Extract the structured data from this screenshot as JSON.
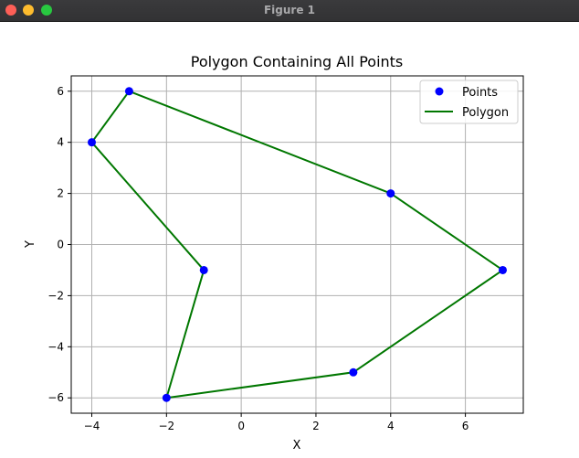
{
  "window": {
    "title": "Figure 1"
  },
  "chart_data": {
    "type": "scatter",
    "title": "Polygon Containing All Points",
    "xlabel": "X",
    "ylabel": "Y",
    "xlim": [
      -4.55,
      7.55
    ],
    "ylim": [
      -6.6,
      6.6
    ],
    "grid": true,
    "xticks": [
      -4,
      -2,
      0,
      2,
      4,
      6
    ],
    "xtick_labels": [
      "−4",
      "−2",
      "0",
      "2",
      "4",
      "6"
    ],
    "yticks": [
      -6,
      -4,
      -2,
      0,
      2,
      4,
      6
    ],
    "ytick_labels": [
      "−6",
      "−4",
      "−2",
      "0",
      "2",
      "4",
      "6"
    ],
    "legend_position": "top-right",
    "series": [
      {
        "name": "Points",
        "kind": "scatter",
        "color": "#0000ff",
        "x": [
          -3,
          -4,
          -1,
          -2,
          3,
          7,
          4
        ],
        "y": [
          6,
          4,
          -1,
          -6,
          -5,
          -1,
          2
        ]
      },
      {
        "name": "Polygon",
        "kind": "line",
        "color": "#007700",
        "x": [
          -3,
          -4,
          -1,
          -2,
          3,
          7,
          4,
          -3
        ],
        "y": [
          6,
          4,
          -1,
          -6,
          -5,
          -1,
          2,
          6
        ]
      }
    ]
  }
}
